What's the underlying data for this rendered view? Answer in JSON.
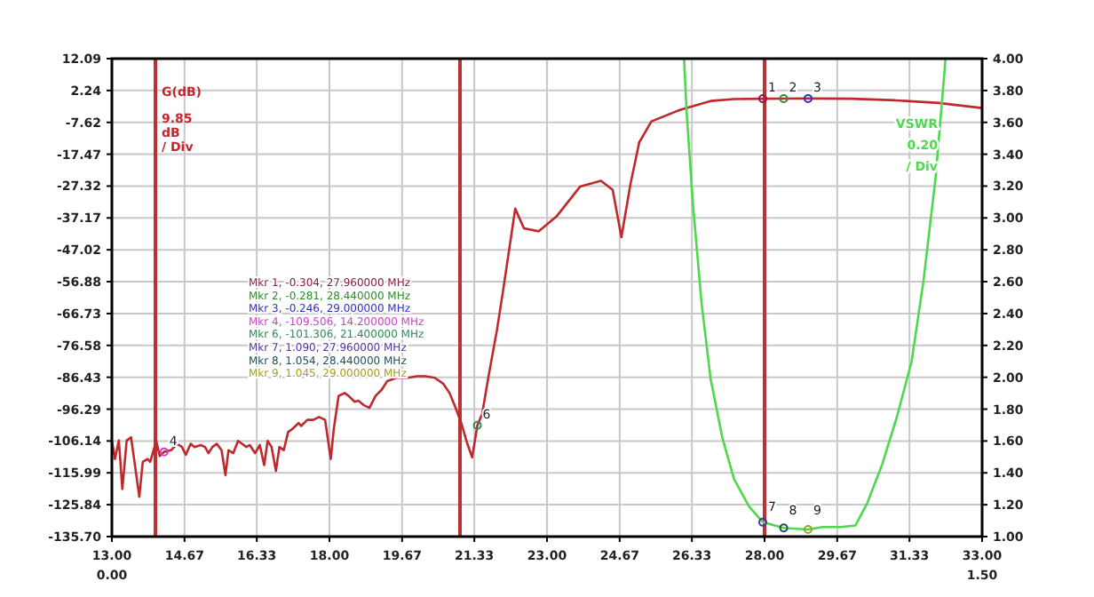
{
  "chart_data": {
    "type": "line",
    "ylabel": "G(dB)",
    "y2label": "VSWR",
    "xlim": [
      13,
      33
    ],
    "xticks": [
      {
        "value": 13,
        "label": "13.00"
      },
      {
        "value": 14.67,
        "label": "14.67"
      },
      {
        "value": 16.33,
        "label": "16.33"
      },
      {
        "value": 18,
        "label": "18.00"
      },
      {
        "value": 19.67,
        "label": "19.67"
      },
      {
        "value": 21.33,
        "label": "21.33"
      },
      {
        "value": 23,
        "label": "23.00"
      },
      {
        "value": 24.67,
        "label": "24.67"
      },
      {
        "value": 26.33,
        "label": "26.33"
      },
      {
        "value": 28,
        "label": "28.00"
      },
      {
        "value": 29.67,
        "label": "29.67"
      },
      {
        "value": 31.33,
        "label": "31.33"
      },
      {
        "value": 33,
        "label": "33.00"
      }
    ],
    "ylim": [
      -135.7,
      12.09
    ],
    "yticks": [
      12.09,
      2.24,
      -7.62,
      -17.47,
      -27.32,
      -37.17,
      -47.02,
      -56.88,
      -66.73,
      -76.58,
      -86.43,
      -96.29,
      -106.14,
      -115.99,
      -125.84,
      {
        "value": -135.7,
        "label": "-135.70"
      }
    ],
    "y2lim": [
      1,
      4
    ],
    "y2ticks": [
      {
        "value": 1,
        "label": "1.00"
      },
      {
        "value": 1.2,
        "label": "1.20"
      },
      {
        "value": 1.4,
        "label": "1.40"
      },
      {
        "value": 1.6,
        "label": "1.60"
      },
      {
        "value": 1.8,
        "label": "1.80"
      },
      {
        "value": 2,
        "label": "2.00"
      },
      {
        "value": 2.2,
        "label": "2.20"
      },
      {
        "value": 2.4,
        "label": "2.40"
      },
      {
        "value": 2.6,
        "label": "2.60"
      },
      {
        "value": 2.8,
        "label": "2.80"
      },
      {
        "value": 3,
        "label": "3.00"
      },
      {
        "value": 3.2,
        "label": "3.20"
      },
      {
        "value": 3.4,
        "label": "3.40"
      },
      {
        "value": 3.6,
        "label": "3.60"
      },
      {
        "value": 3.8,
        "label": "3.80"
      },
      {
        "value": 4,
        "label": "4.00"
      }
    ],
    "grid": true,
    "ref_lines": [
      {
        "axis": "x",
        "value": 14,
        "color": "#b83236"
      },
      {
        "axis": "x",
        "value": 21,
        "color": "#b83236"
      },
      {
        "axis": "x",
        "value": 28,
        "color": "#b83236"
      }
    ],
    "series": [
      {
        "color": "#c0282d",
        "axis": "y",
        "x": [
          13.0,
          13.07,
          13.16,
          13.24,
          13.34,
          13.44,
          13.52,
          13.63,
          13.71,
          13.82,
          13.88,
          14.02,
          14.1,
          14.2,
          14.36,
          14.5,
          14.61,
          14.7,
          14.81,
          14.9,
          15.04,
          15.14,
          15.22,
          15.31,
          15.41,
          15.52,
          15.61,
          15.68,
          15.79,
          15.9,
          15.99,
          16.09,
          16.17,
          16.29,
          16.4,
          16.5,
          16.58,
          16.67,
          16.77,
          16.85,
          16.95,
          17.05,
          17.15,
          17.29,
          17.35,
          17.49,
          17.63,
          17.76,
          17.9,
          18.03,
          18.1,
          18.21,
          18.35,
          18.44,
          18.58,
          18.67,
          18.78,
          18.92,
          19.06,
          19.2,
          19.33,
          19.54,
          19.8,
          20.01,
          20.21,
          20.42,
          20.62,
          20.76,
          20.9,
          21.03,
          21.17,
          21.28,
          21.4,
          21.51,
          21.65,
          21.85,
          21.99,
          22.27,
          22.47,
          22.81,
          23.22,
          23.76,
          24.24,
          24.51,
          24.71,
          24.92,
          25.12,
          25.4,
          26.07,
          26.76,
          27.3,
          27.96,
          28.44,
          29.0,
          30.0,
          31.0,
          32.0,
          33.0
        ],
        "values": [
          -106,
          -111.7,
          -106,
          -121,
          -106,
          -105,
          -112.6,
          -123.4,
          -112.6,
          -111.7,
          -112.6,
          -106.1,
          -110.8,
          -109.5,
          -109,
          -107,
          -108,
          -110.4,
          -107,
          -108,
          -107.4,
          -108,
          -109.9,
          -108,
          -107,
          -109,
          -116.7,
          -109,
          -109.9,
          -106.1,
          -107,
          -108,
          -107.4,
          -109.9,
          -107.4,
          -113.6,
          -106.1,
          -108,
          -115.4,
          -108,
          -109,
          -103.4,
          -102.4,
          -100.6,
          -101.5,
          -99.6,
          -99.6,
          -98.7,
          -99.6,
          -111.7,
          -102.4,
          -92.2,
          -91.3,
          -92.2,
          -94,
          -93.7,
          -95,
          -95.9,
          -92.2,
          -90.3,
          -87.6,
          -86.6,
          -86.6,
          -86.1,
          -86.1,
          -86.6,
          -88.5,
          -91.3,
          -95.9,
          -100.6,
          -107,
          -111.2,
          -101.3,
          -97.8,
          -86.6,
          -71.8,
          -59.7,
          -34.3,
          -40.4,
          -41.3,
          -36.7,
          -27.5,
          -25.7,
          -28.5,
          -43.1,
          -26.6,
          -13.8,
          -7.3,
          -3.7,
          -1.0,
          -0.4,
          -0.304,
          -0.281,
          -0.246,
          -0.3,
          -0.8,
          -1.6,
          -3.2
        ]
      },
      {
        "color": "#4cd94c",
        "axis": "y2",
        "x": [
          26.15,
          26.21,
          26.35,
          26.55,
          26.76,
          27.03,
          27.3,
          27.64,
          27.96,
          28.44,
          29.0,
          29.34,
          29.75,
          30.09,
          30.36,
          30.7,
          31.04,
          31.38,
          31.65,
          31.93,
          32.16
        ],
        "values": [
          4.0,
          3.66,
          3.1,
          2.47,
          1.99,
          1.62,
          1.36,
          1.19,
          1.09,
          1.054,
          1.045,
          1.06,
          1.06,
          1.07,
          1.21,
          1.45,
          1.75,
          2.1,
          2.6,
          3.25,
          4.0
        ]
      },
      {
        "type": "scatter",
        "axis": "y",
        "marker": "circle",
        "x": [
          27.96,
          28.44,
          29.0,
          14.2,
          21.4
        ],
        "values": [
          -0.304,
          -0.281,
          -0.246,
          -109.506,
          -101.306
        ],
        "colors": [
          "#8b1a4a",
          "#2e8b2e",
          "#3030c0",
          "#d040d0",
          "#2e8b57"
        ]
      },
      {
        "type": "scatter",
        "axis": "y2",
        "marker": "circle",
        "x": [
          27.96,
          28.44,
          29.0
        ],
        "values": [
          1.09,
          1.054,
          1.045
        ],
        "colors": [
          "#5030a0",
          "#205060",
          "#a0a020"
        ]
      }
    ],
    "annotations": [
      "Mkr 1, -0.304, 27.960000 MHz",
      "Mkr 2, -0.281, 28.440000 MHz",
      "Mkr 3, -0.246, 29.000000 MHz",
      "Mkr 4, -109.506, 14.200000 MHz",
      "Mkr 6, -101.306, 21.400000 MHz",
      "Mkr 7, 1.090, 27.960000 MHz",
      "Mkr 8, 1.054, 28.440000 MHz",
      "Mkr 9, 1.045, 29.000000 MHz",
      "9.85\ndB\n/ Div",
      "0.20\n/ Div",
      "0.00",
      "1.50",
      {
        "text": "1",
        "x": 27.96,
        "y": -0.304
      },
      {
        "text": "2",
        "x": 28.44,
        "y": -0.281
      },
      {
        "text": "3",
        "x": 29.0,
        "y": -0.246
      },
      {
        "text": "4",
        "x": 14.2,
        "y": -109.506
      },
      {
        "text": "6",
        "x": 21.4,
        "y": -101.306
      },
      {
        "text": "7",
        "x": 27.96,
        "y": -130
      },
      {
        "text": "8",
        "x": 28.44,
        "y": -131
      },
      {
        "text": "9",
        "x": 29.0,
        "y": -131
      }
    ]
  }
}
